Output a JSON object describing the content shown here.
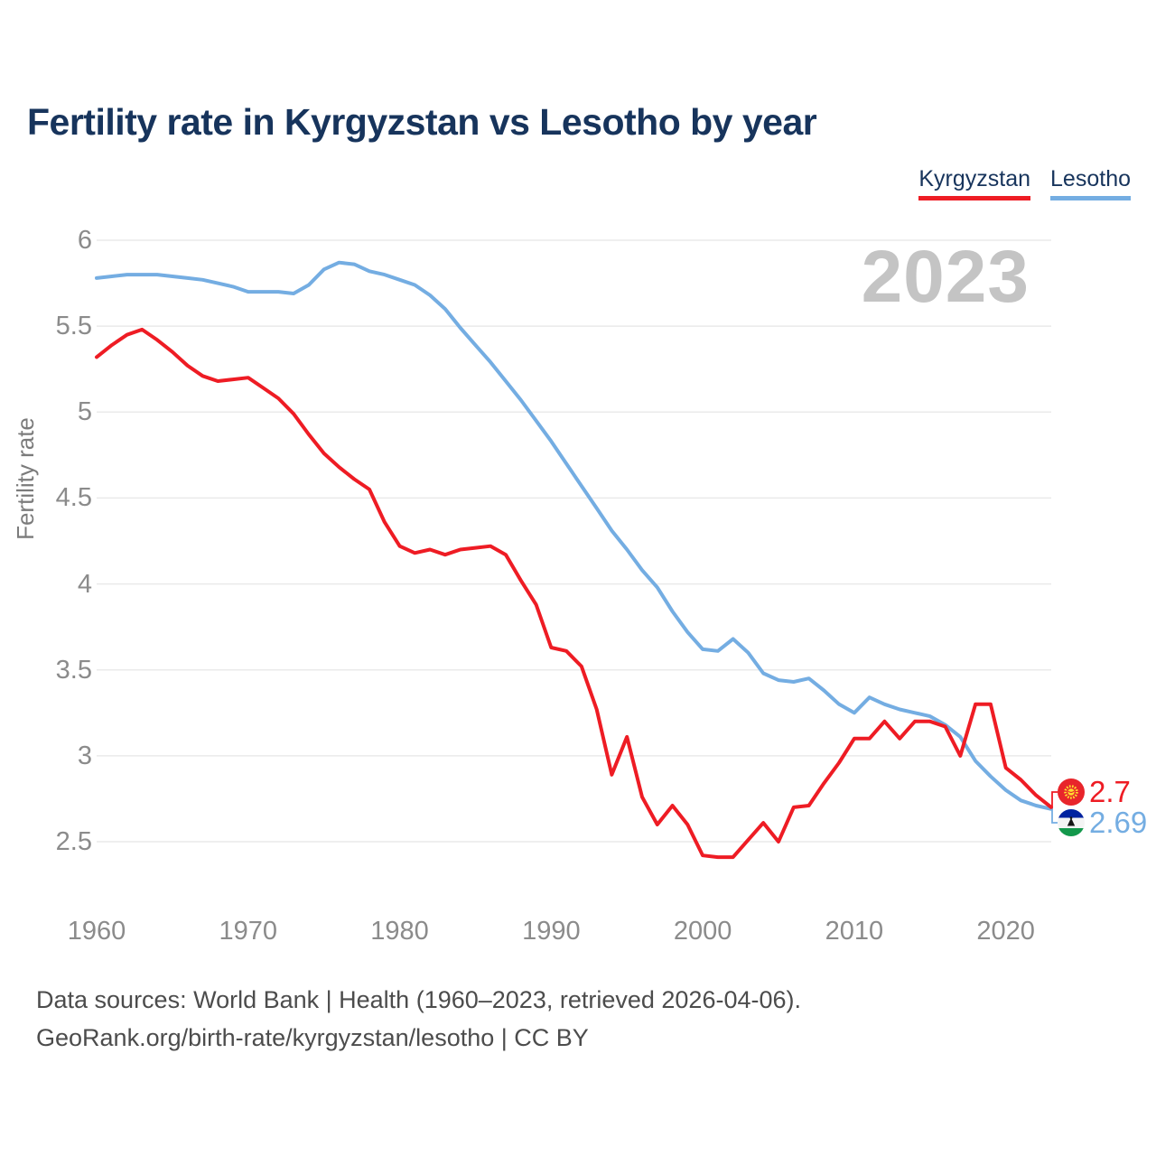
{
  "header": {
    "title": "Fertility rate in Kyrgyzstan vs Lesotho by year"
  },
  "legend": {
    "items": [
      {
        "label": "Kyrgyzstan",
        "color": "#ee1c24"
      },
      {
        "label": "Lesotho",
        "color": "#74ade2"
      }
    ]
  },
  "watermark": "2023",
  "colors": {
    "title": "#17345c",
    "axis_text": "#8b8b8b",
    "grid": "#eaeaea",
    "watermark": "#c4c4c4",
    "footer_text": "#4c4c4c",
    "kyrgyzstan": "#ee1c24",
    "lesotho": "#74ade2"
  },
  "axes": {
    "ylabel": "Fertility rate",
    "ytick_labels": [
      "6",
      "5.5",
      "5",
      "4.5",
      "4",
      "3.5",
      "3",
      "2.5"
    ],
    "xtick_labels": [
      "1960",
      "1970",
      "1980",
      "1990",
      "2000",
      "2010",
      "2020"
    ]
  },
  "end_labels": [
    {
      "series": "Kyrgyzstan",
      "value": "2.7"
    },
    {
      "series": "Lesotho",
      "value": "2.69"
    }
  ],
  "footer": {
    "line1": "Data sources: World Bank | Health (1960–2023, retrieved 2026-04-06).",
    "line2": "GeoRank.org/birth-rate/kyrgyzstan/lesotho | CC BY"
  },
  "chart_data": {
    "type": "line",
    "title": "Fertility rate in Kyrgyzstan vs Lesotho by year",
    "xlabel": "",
    "ylabel": "Fertility rate",
    "xlim": [
      1960,
      2023
    ],
    "ylim": [
      2.5,
      6
    ],
    "xticks": [
      1960,
      1970,
      1980,
      1990,
      2000,
      2010,
      2020
    ],
    "yticks": [
      6,
      5.5,
      5,
      4.5,
      4,
      3.5,
      3,
      2.5
    ],
    "grid": "horizontal-only",
    "legend_position": "top-right",
    "x": [
      1960,
      1961,
      1962,
      1963,
      1964,
      1965,
      1966,
      1967,
      1968,
      1969,
      1970,
      1971,
      1972,
      1973,
      1974,
      1975,
      1976,
      1977,
      1978,
      1979,
      1980,
      1981,
      1982,
      1983,
      1984,
      1985,
      1986,
      1987,
      1988,
      1989,
      1990,
      1991,
      1992,
      1993,
      1994,
      1995,
      1996,
      1997,
      1998,
      1999,
      2000,
      2001,
      2002,
      2003,
      2004,
      2005,
      2006,
      2007,
      2008,
      2009,
      2010,
      2011,
      2012,
      2013,
      2014,
      2015,
      2016,
      2017,
      2018,
      2019,
      2020,
      2021,
      2022,
      2023
    ],
    "series": [
      {
        "name": "Kyrgyzstan",
        "color": "#ee1c24",
        "end_label": "2.7",
        "values": [
          5.32,
          5.39,
          5.45,
          5.48,
          5.42,
          5.35,
          5.27,
          5.21,
          5.18,
          5.19,
          5.2,
          5.14,
          5.08,
          4.99,
          4.87,
          4.76,
          4.68,
          4.61,
          4.55,
          4.36,
          4.22,
          4.18,
          4.2,
          4.17,
          4.2,
          4.21,
          4.22,
          4.17,
          4.02,
          3.88,
          3.63,
          3.61,
          3.52,
          3.27,
          2.89,
          3.11,
          2.76,
          2.6,
          2.71,
          2.6,
          2.42,
          2.41,
          2.41,
          2.51,
          2.61,
          2.5,
          2.7,
          2.71,
          2.84,
          2.96,
          3.1,
          3.1,
          3.2,
          3.1,
          3.2,
          3.2,
          3.17,
          3.0,
          3.3,
          3.3,
          2.93,
          2.86,
          2.77,
          2.7
        ]
      },
      {
        "name": "Lesotho",
        "color": "#74ade2",
        "end_label": "2.69",
        "values": [
          5.78,
          5.79,
          5.8,
          5.8,
          5.8,
          5.79,
          5.78,
          5.77,
          5.75,
          5.73,
          5.7,
          5.7,
          5.7,
          5.69,
          5.74,
          5.83,
          5.87,
          5.86,
          5.82,
          5.8,
          5.77,
          5.74,
          5.68,
          5.6,
          5.49,
          5.39,
          5.29,
          5.18,
          5.07,
          4.95,
          4.83,
          4.7,
          4.57,
          4.44,
          4.31,
          4.2,
          4.08,
          3.98,
          3.84,
          3.72,
          3.62,
          3.61,
          3.68,
          3.6,
          3.48,
          3.44,
          3.43,
          3.45,
          3.38,
          3.3,
          3.25,
          3.34,
          3.3,
          3.27,
          3.25,
          3.23,
          3.18,
          3.11,
          2.97,
          2.88,
          2.8,
          2.74,
          2.71,
          2.69
        ]
      }
    ]
  }
}
